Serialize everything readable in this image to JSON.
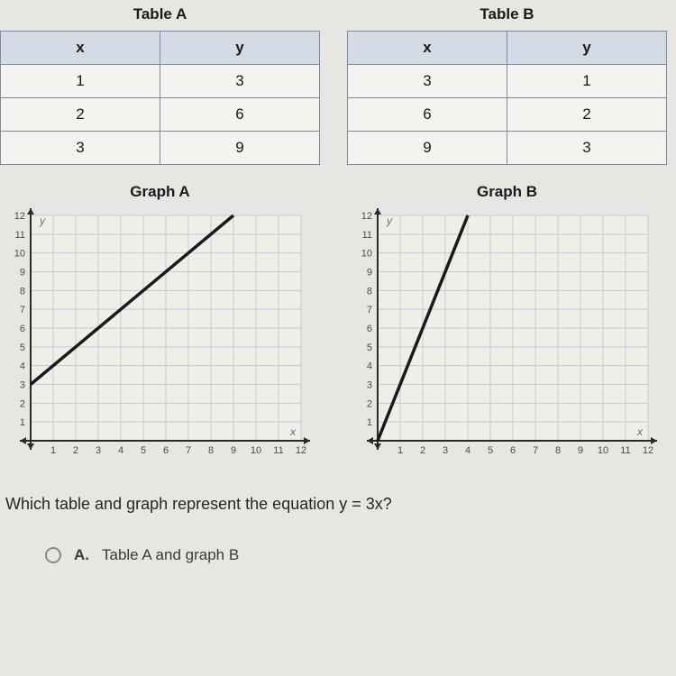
{
  "tables": {
    "a": {
      "title": "Table A",
      "columns": [
        "x",
        "y"
      ],
      "rows": [
        [
          "1",
          "3"
        ],
        [
          "2",
          "6"
        ],
        [
          "3",
          "9"
        ]
      ]
    },
    "b": {
      "title": "Table B",
      "columns": [
        "x",
        "y"
      ],
      "rows": [
        [
          "3",
          "1"
        ],
        [
          "6",
          "2"
        ],
        [
          "9",
          "3"
        ]
      ]
    },
    "header_bg": "#d4dbe6",
    "border_color": "#7d8ba0",
    "cell_bg": "#f4f3ef"
  },
  "graphs": {
    "a": {
      "title": "Graph A",
      "type": "line",
      "xlim": [
        0,
        12
      ],
      "ylim": [
        0,
        12
      ],
      "xtick_step": 1,
      "ytick_step": 1,
      "y_label": "y",
      "x_label": "x",
      "grid_color": "#c2c9d6",
      "axis_color": "#2a2a2a",
      "background_color": "#f0eee9",
      "line_color": "#1a1a1a",
      "line_width": 3.5,
      "points": [
        [
          0,
          3
        ],
        [
          9,
          12
        ]
      ]
    },
    "b": {
      "title": "Graph B",
      "type": "line",
      "xlim": [
        0,
        12
      ],
      "ylim": [
        0,
        12
      ],
      "xtick_step": 1,
      "ytick_step": 1,
      "y_label": "y",
      "x_label": "x",
      "grid_color": "#c2c9d6",
      "axis_color": "#2a2a2a",
      "background_color": "#f0eee9",
      "line_color": "#1a1a1a",
      "line_width": 3.5,
      "points": [
        [
          0,
          0
        ],
        [
          4,
          12
        ]
      ]
    }
  },
  "question": "Which table and graph represent the equation y = 3x?",
  "options": {
    "a": {
      "letter": "A.",
      "text": "Table A and graph B"
    }
  },
  "page_bg": "#e8e6e2"
}
